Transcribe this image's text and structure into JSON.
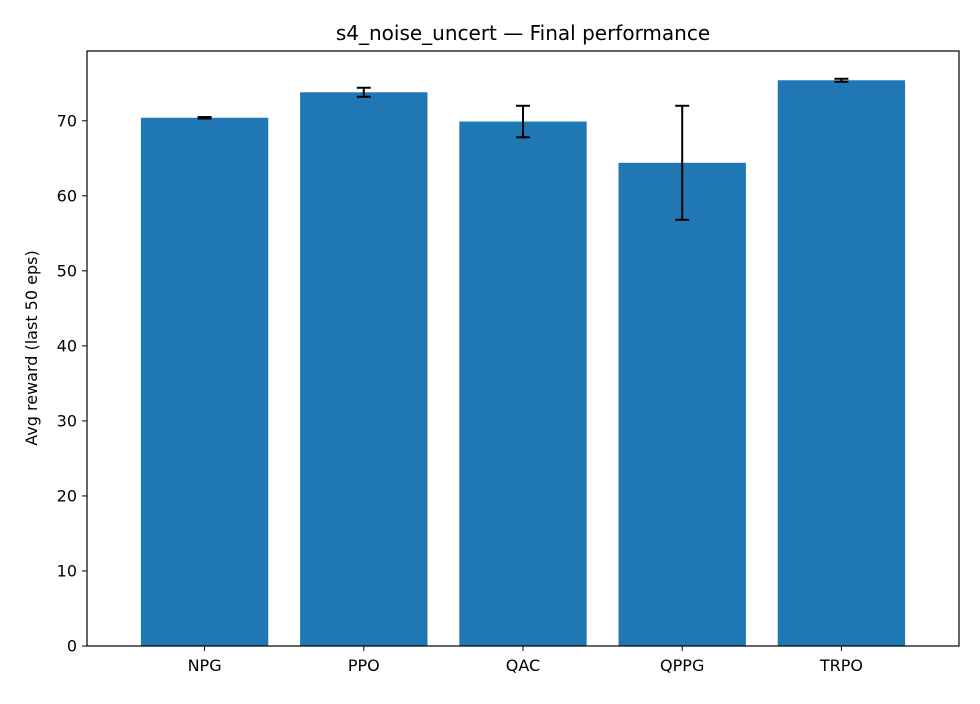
{
  "chart_data": {
    "type": "bar",
    "title": "s4_noise_uncert — Final performance",
    "xlabel": "",
    "ylabel": "Avg reward (last 50 eps)",
    "categories": [
      "NPG",
      "PPO",
      "QAC",
      "QPPG",
      "TRPO"
    ],
    "values": [
      70.4,
      73.8,
      69.9,
      64.4,
      75.4
    ],
    "error_low": [
      70.3,
      73.2,
      67.8,
      56.8,
      75.2
    ],
    "error_high": [
      70.5,
      74.4,
      72.0,
      72.0,
      75.6
    ],
    "ylim": [
      0,
      79.3
    ],
    "yticks": [
      0,
      10,
      20,
      30,
      40,
      50,
      60,
      70
    ],
    "grid": false,
    "legend": "none",
    "bar_color": "#1f77b4",
    "errorbar_color": "#000000"
  }
}
